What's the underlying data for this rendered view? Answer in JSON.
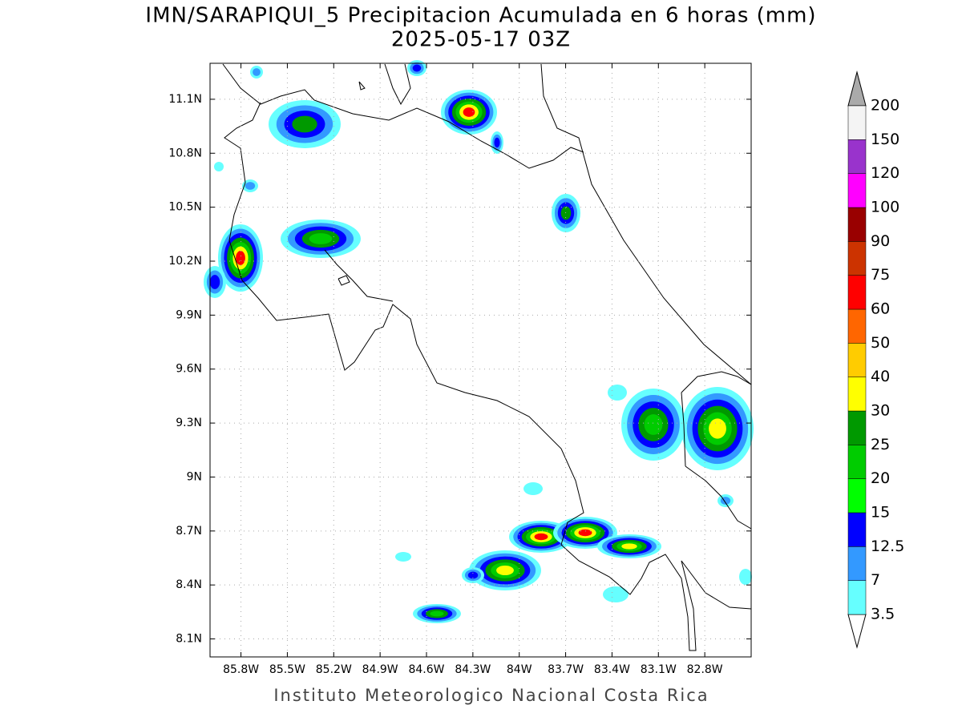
{
  "header": {
    "title": "IMN/SARAPIQUI_5 Precipitacion Acumulada en 6 horas (mm)",
    "subtitle": "2025-05-17 03Z"
  },
  "map": {
    "xlim": [
      -86.0,
      -82.5
    ],
    "ylim": [
      8.0,
      11.3
    ],
    "grid": true,
    "xticks": [
      {
        "value": -85.8,
        "label": "85.8W"
      },
      {
        "value": -85.5,
        "label": "85.5W"
      },
      {
        "value": -85.2,
        "label": "85.2W"
      },
      {
        "value": -84.9,
        "label": "84.9W"
      },
      {
        "value": -84.6,
        "label": "84.6W"
      },
      {
        "value": -84.3,
        "label": "84.3W"
      },
      {
        "value": -84.0,
        "label": "84W"
      },
      {
        "value": -83.7,
        "label": "83.7W"
      },
      {
        "value": -83.4,
        "label": "83.4W"
      },
      {
        "value": -83.1,
        "label": "83.1W"
      },
      {
        "value": -82.8,
        "label": "82.8W"
      }
    ],
    "yticks": [
      {
        "value": 8.1,
        "label": "8.1N"
      },
      {
        "value": 8.4,
        "label": "8.4N"
      },
      {
        "value": 8.7,
        "label": "8.7N"
      },
      {
        "value": 9.0,
        "label": "9N"
      },
      {
        "value": 9.3,
        "label": "9.3N"
      },
      {
        "value": 9.6,
        "label": "9.6N"
      },
      {
        "value": 9.9,
        "label": "9.9N"
      },
      {
        "value": 10.2,
        "label": "10.2N"
      },
      {
        "value": 10.5,
        "label": "10.5N"
      },
      {
        "value": 10.8,
        "label": "10.8N"
      },
      {
        "value": 11.1,
        "label": "11.1N"
      }
    ]
  },
  "colorbar": {
    "levels": [
      3.5,
      7,
      12.5,
      15,
      20,
      25,
      30,
      40,
      50,
      60,
      75,
      90,
      100,
      120,
      150,
      200
    ],
    "colors": [
      "#66ffff",
      "#3399ff",
      "#0000ff",
      "#00ff00",
      "#00cc00",
      "#009900",
      "#ffff00",
      "#ffcc00",
      "#ff6600",
      "#ff0000",
      "#cc3300",
      "#990000",
      "#ff00ff",
      "#9933cc",
      "#f4f4f4"
    ],
    "under_color": "#ffffff",
    "over_color": "#aaaaaa"
  },
  "footer": "Instituto Meteorologico Nacional Costa Rica"
}
